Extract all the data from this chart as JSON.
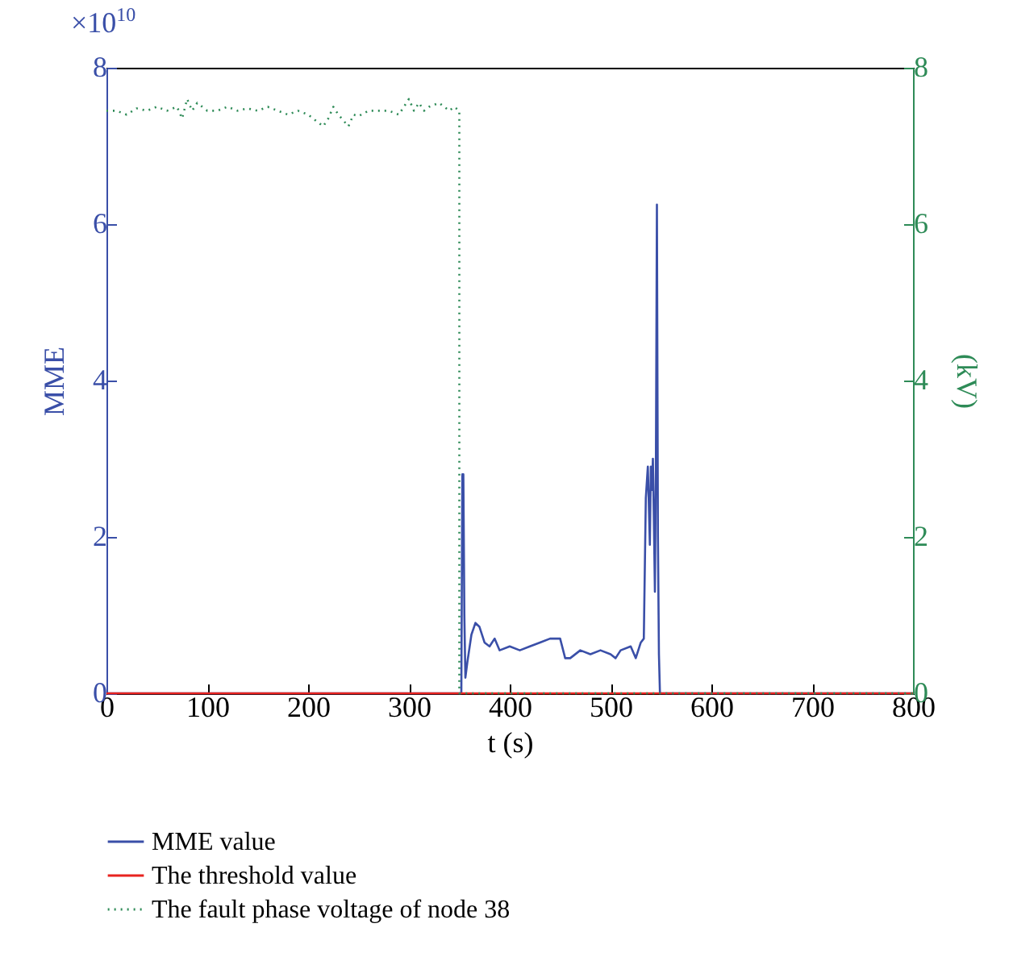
{
  "chart_data": {
    "type": "line",
    "xlabel": "t (s)",
    "ylabel": "MME",
    "y2label": "(kV)",
    "annotations": [
      "×10$^{10}$"
    ],
    "xlim": [
      0,
      800
    ],
    "xticks": [
      0,
      100,
      200,
      300,
      400,
      500,
      600,
      700,
      800
    ],
    "ylim": [
      0,
      8
    ],
    "yticks": [
      0,
      2,
      4,
      6,
      8
    ],
    "y2lim": [
      0,
      8
    ],
    "y2ticks": [
      0,
      2,
      4,
      6,
      8
    ],
    "grid": false,
    "legend": "bottom",
    "series": [
      {
        "name": "MME value",
        "color": "#3a4fa8",
        "line_style": "solid",
        "x": [
          0,
          352,
          353,
          354,
          355,
          356,
          358,
          362,
          366,
          370,
          375,
          380,
          385,
          390,
          400,
          410,
          420,
          430,
          440,
          450,
          455,
          460,
          470,
          480,
          490,
          500,
          505,
          510,
          520,
          525,
          530,
          533,
          535,
          537,
          539,
          540,
          541,
          542,
          543,
          544,
          545,
          546,
          547,
          548,
          549,
          550,
          551,
          800
        ],
        "values": [
          0,
          0,
          2.8,
          2.8,
          1.0,
          0.2,
          0.4,
          0.75,
          0.9,
          0.85,
          0.65,
          0.6,
          0.7,
          0.55,
          0.6,
          0.55,
          0.6,
          0.65,
          0.7,
          0.7,
          0.45,
          0.45,
          0.55,
          0.5,
          0.55,
          0.5,
          0.45,
          0.55,
          0.6,
          0.45,
          0.65,
          0.7,
          2.5,
          2.9,
          1.9,
          2.9,
          2.6,
          3.0,
          2.2,
          1.3,
          2.9,
          6.25,
          2,
          0.5,
          0,
          0,
          0,
          0
        ]
      },
      {
        "name": "The threshold value",
        "color": "#e8231f",
        "line_style": "solid",
        "x": [
          0,
          800
        ],
        "values": [
          0,
          0
        ]
      },
      {
        "name": "The fault phase voltage of node 38",
        "color": "#2e8b57",
        "line_style": "dotted",
        "axis": "y2",
        "x": [
          0,
          10,
          20,
          30,
          40,
          50,
          60,
          70,
          75,
          80,
          85,
          90,
          100,
          110,
          120,
          130,
          140,
          150,
          160,
          170,
          180,
          190,
          200,
          210,
          215,
          220,
          225,
          230,
          240,
          245,
          250,
          260,
          270,
          280,
          290,
          300,
          305,
          310,
          315,
          320,
          330,
          340,
          345,
          350,
          350,
          800
        ],
        "values": [
          7.45,
          7.45,
          7.4,
          7.48,
          7.45,
          7.5,
          7.45,
          7.5,
          7.35,
          7.6,
          7.45,
          7.55,
          7.45,
          7.45,
          7.5,
          7.45,
          7.48,
          7.45,
          7.5,
          7.45,
          7.4,
          7.45,
          7.4,
          7.3,
          7.25,
          7.35,
          7.5,
          7.4,
          7.25,
          7.4,
          7.38,
          7.45,
          7.45,
          7.45,
          7.4,
          7.6,
          7.45,
          7.55,
          7.45,
          7.5,
          7.55,
          7.45,
          7.5,
          7.45,
          0,
          0
        ]
      }
    ]
  }
}
